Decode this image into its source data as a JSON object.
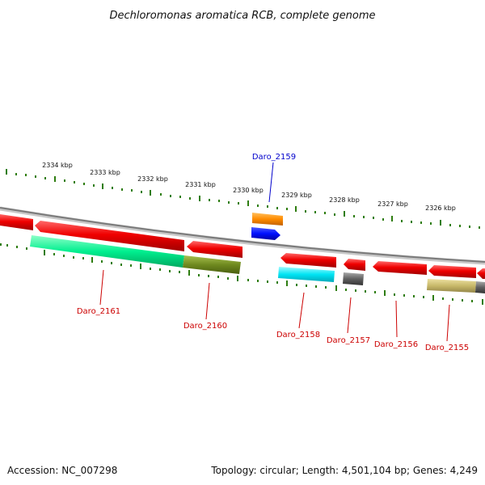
{
  "title": "Dechloromonas aromatica RCB, complete genome",
  "footer": {
    "accession": "Accession: NC_007298",
    "summary": "Topology: circular; Length: 4,501,104 bp; Genes: 4,249"
  },
  "ticks": [
    "2334 kbp",
    "2333 kbp",
    "2332 kbp",
    "2331 kbp",
    "2330 kbp",
    "2329 kbp",
    "2328 kbp",
    "2327 kbp",
    "2326 kbp"
  ],
  "genes": [
    {
      "label": "Daro_2161",
      "color": "#d40000"
    },
    {
      "label": "Daro_2160",
      "color": "#d40000"
    },
    {
      "label": "Daro_2159",
      "color": "#0000cc"
    },
    {
      "label": "Daro_2158",
      "color": "#d40000"
    },
    {
      "label": "Daro_2157",
      "color": "#d40000"
    },
    {
      "label": "Daro_2156",
      "color": "#d40000"
    },
    {
      "label": "Daro_2155",
      "color": "#d40000"
    }
  ],
  "colors": {
    "forward": "#e00000",
    "orange": "#ff8c00",
    "blue": "#0000ee",
    "spring_green": "#00e08a",
    "olive": "#6f8a1f",
    "cyan": "#00e0f0",
    "gray": "#555555",
    "khaki": "#c8b96a",
    "tick": "#2e7d10",
    "backbone": "#808080"
  }
}
